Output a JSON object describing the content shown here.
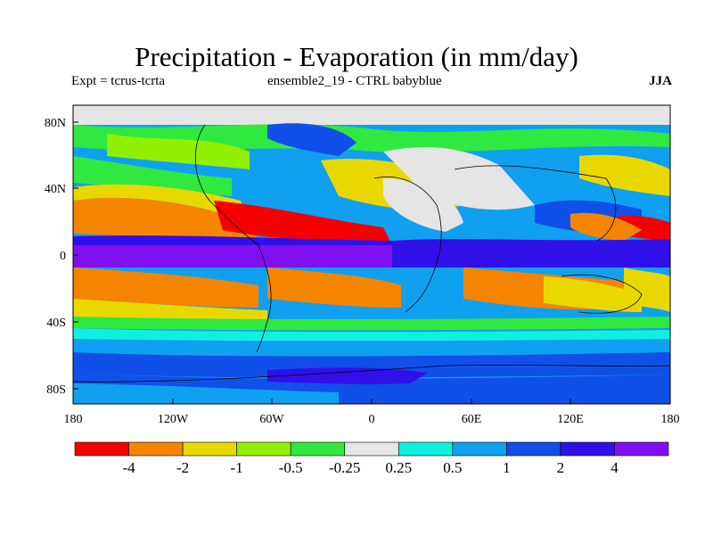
{
  "header": {
    "title": "Precipitation - Evaporation (in mm/day)",
    "expt": "Expt = tcrus-tcrta",
    "ensemble": "ensemble2_19 - CTRL babyblue",
    "season": "JJA"
  },
  "map": {
    "lat_labels": [
      "80N",
      "40N",
      "0",
      "40S",
      "80S"
    ],
    "lon_labels": [
      "180",
      "120W",
      "60W",
      "0",
      "60E",
      "120E",
      "180"
    ]
  },
  "colorbar": {
    "colors": [
      "#f50000",
      "#f58500",
      "#e8d800",
      "#90f000",
      "#30e840",
      "#e5e5e5",
      "#10f0e0",
      "#10a0f0",
      "#1050e8",
      "#3010e8",
      "#8010f0"
    ],
    "labels": [
      "-4",
      "-2",
      "-1",
      "-0.5",
      "-0.25",
      "0.25",
      "0.5",
      "1",
      "2",
      "4"
    ]
  }
}
